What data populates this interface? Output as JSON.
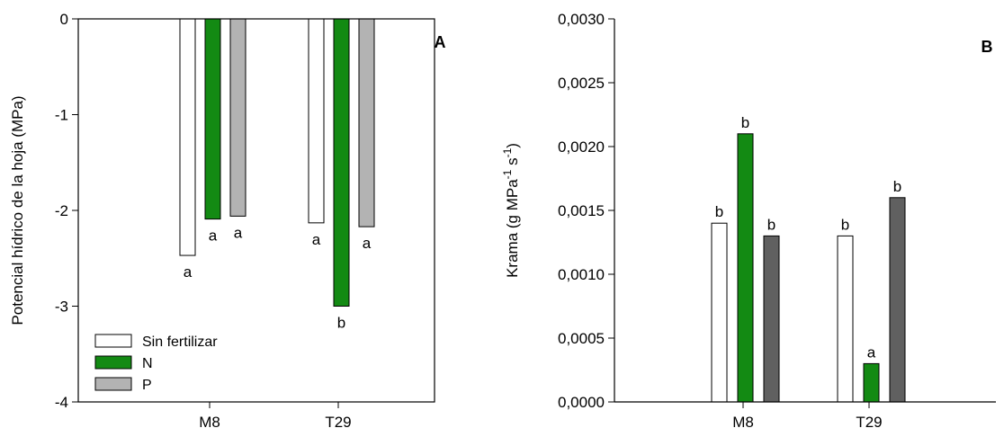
{
  "chart_data": [
    {
      "type": "bar",
      "panel_label": "A",
      "ylabel": "Potencial hídrico de la hoja (MPa)",
      "xlabel": "",
      "categories": [
        "M8",
        "T29"
      ],
      "ylim": [
        -4,
        0
      ],
      "yticks": [
        0,
        -1,
        -2,
        -3,
        -4
      ],
      "ytick_labels": [
        "0",
        "-1",
        "-2",
        "-3",
        "-4"
      ],
      "grid": false,
      "legend_position": "bottom-left",
      "series": [
        {
          "name": "Sin fertilizar",
          "color": "#ffffff",
          "values": [
            -2.47,
            -2.13
          ],
          "labels": [
            "a",
            "a"
          ]
        },
        {
          "name": "N",
          "color": "#138a13",
          "values": [
            -2.09,
            -3.0
          ],
          "labels": [
            "a",
            "b"
          ]
        },
        {
          "name": "P",
          "color": "#b3b3b3",
          "values": [
            -2.06,
            -2.17
          ],
          "labels": [
            "a",
            "a"
          ]
        }
      ]
    },
    {
      "type": "bar",
      "panel_label": "B",
      "ylabel_parts": [
        "Krama (g MPa",
        "-1",
        " s",
        "-1",
        ")"
      ],
      "xlabel": "",
      "categories": [
        "M8",
        "T29"
      ],
      "ylim": [
        0,
        0.003
      ],
      "yticks": [
        0,
        0.0005,
        0.001,
        0.0015,
        0.002,
        0.0025,
        0.003
      ],
      "ytick_labels": [
        "0,0000",
        "0,0005",
        "0,0010",
        "0,0015",
        "0,0020",
        "0,0025",
        "0,0030"
      ],
      "grid": false,
      "series": [
        {
          "color": "#ffffff",
          "values": [
            0.0014,
            0.0013
          ],
          "labels": [
            "b",
            "b"
          ]
        },
        {
          "color": "#138a13",
          "values": [
            0.0021,
            0.0003
          ],
          "labels": [
            "b",
            "a"
          ]
        },
        {
          "color": "#606060",
          "values": [
            0.0013,
            0.0016
          ],
          "labels": [
            "b",
            "b"
          ]
        }
      ]
    }
  ]
}
